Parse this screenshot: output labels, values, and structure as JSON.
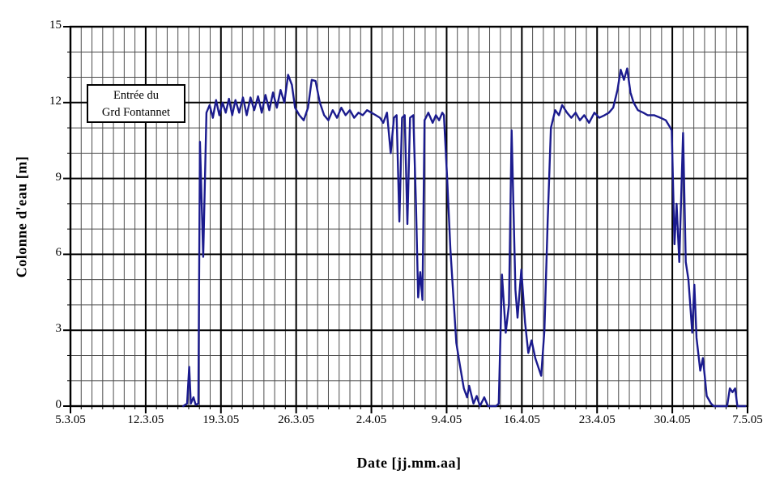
{
  "chart_data": {
    "type": "line",
    "title": "",
    "xlabel": "Date [jj.mm.aa]",
    "ylabel": "Colonne d'eau [m]",
    "x_tick_labels": [
      "5.3.05",
      "12.3.05",
      "19.3.05",
      "26.3.05",
      "2.4.05",
      "9.4.05",
      "16.4.05",
      "23.4.05",
      "30.4.05",
      "7.5.05"
    ],
    "x_tick_days": [
      0,
      7,
      14,
      21,
      28,
      35,
      42,
      49,
      56,
      63
    ],
    "x_range_days": [
      0,
      63
    ],
    "x_minor_step_days": 1,
    "ylim": [
      0,
      15
    ],
    "y_ticks": [
      0,
      3,
      6,
      9,
      12,
      15
    ],
    "y_minor_step": 1,
    "grid": "major+minor both axes",
    "legend_position": "none",
    "annotation": {
      "lines": [
        "Entrée du",
        "Grd Fontannet"
      ]
    },
    "series": [
      {
        "name": "Entrée du Grd Fontannet",
        "color": "#1b1b8e",
        "x_unit": "days since 5.3.05",
        "points": [
          [
            10.5,
            0
          ],
          [
            10.85,
            0.1
          ],
          [
            11.05,
            1.55
          ],
          [
            11.2,
            0.1
          ],
          [
            11.45,
            0.35
          ],
          [
            11.65,
            0.05
          ],
          [
            11.9,
            0.1
          ],
          [
            12.05,
            10.45
          ],
          [
            12.35,
            5.9
          ],
          [
            12.65,
            11.6
          ],
          [
            12.95,
            11.9
          ],
          [
            13.25,
            11.4
          ],
          [
            13.55,
            12.1
          ],
          [
            13.85,
            11.5
          ],
          [
            14.15,
            12.0
          ],
          [
            14.45,
            11.6
          ],
          [
            14.75,
            12.15
          ],
          [
            15.05,
            11.5
          ],
          [
            15.35,
            12.1
          ],
          [
            15.7,
            11.6
          ],
          [
            16.05,
            12.2
          ],
          [
            16.4,
            11.5
          ],
          [
            16.75,
            12.2
          ],
          [
            17.1,
            11.7
          ],
          [
            17.45,
            12.25
          ],
          [
            17.8,
            11.6
          ],
          [
            18.15,
            12.3
          ],
          [
            18.5,
            11.7
          ],
          [
            18.85,
            12.4
          ],
          [
            19.2,
            11.8
          ],
          [
            19.55,
            12.5
          ],
          [
            19.9,
            12.0
          ],
          [
            20.25,
            13.1
          ],
          [
            20.6,
            12.7
          ],
          [
            20.9,
            11.8
          ],
          [
            21.3,
            11.5
          ],
          [
            21.7,
            11.3
          ],
          [
            22.1,
            11.8
          ],
          [
            22.45,
            12.9
          ],
          [
            22.8,
            12.85
          ],
          [
            23.2,
            12.0
          ],
          [
            23.6,
            11.5
          ],
          [
            24.0,
            11.3
          ],
          [
            24.4,
            11.7
          ],
          [
            24.8,
            11.4
          ],
          [
            25.2,
            11.8
          ],
          [
            25.6,
            11.5
          ],
          [
            26.0,
            11.7
          ],
          [
            26.4,
            11.4
          ],
          [
            26.8,
            11.6
          ],
          [
            27.2,
            11.5
          ],
          [
            27.6,
            11.7
          ],
          [
            28.0,
            11.6
          ],
          [
            28.4,
            11.5
          ],
          [
            28.8,
            11.4
          ],
          [
            29.1,
            11.2
          ],
          [
            29.45,
            11.6
          ],
          [
            29.8,
            10.0
          ],
          [
            30.1,
            11.4
          ],
          [
            30.35,
            11.5
          ],
          [
            30.6,
            7.3
          ],
          [
            30.85,
            11.4
          ],
          [
            31.1,
            11.5
          ],
          [
            31.35,
            7.2
          ],
          [
            31.6,
            11.4
          ],
          [
            31.9,
            11.5
          ],
          [
            32.15,
            8.0
          ],
          [
            32.35,
            4.3
          ],
          [
            32.55,
            5.3
          ],
          [
            32.75,
            4.2
          ],
          [
            32.95,
            11.3
          ],
          [
            33.3,
            11.6
          ],
          [
            33.7,
            11.2
          ],
          [
            34.0,
            11.5
          ],
          [
            34.3,
            11.3
          ],
          [
            34.6,
            11.6
          ],
          [
            34.75,
            11.5
          ],
          [
            35.05,
            9.0
          ],
          [
            35.35,
            6.2
          ],
          [
            35.9,
            2.5
          ],
          [
            36.2,
            1.7
          ],
          [
            36.6,
            0.7
          ],
          [
            36.9,
            0.35
          ],
          [
            37.1,
            0.8
          ],
          [
            37.5,
            0.1
          ],
          [
            37.8,
            0.4
          ],
          [
            38.1,
            0.0
          ],
          [
            38.5,
            0.35
          ],
          [
            38.85,
            0.0
          ],
          [
            39.6,
            0.0
          ],
          [
            39.85,
            0.1
          ],
          [
            40.15,
            5.2
          ],
          [
            40.5,
            2.9
          ],
          [
            40.8,
            4.0
          ],
          [
            41.05,
            10.9
          ],
          [
            41.4,
            4.6
          ],
          [
            41.6,
            3.5
          ],
          [
            41.95,
            5.4
          ],
          [
            42.3,
            3.3
          ],
          [
            42.6,
            2.1
          ],
          [
            42.9,
            2.6
          ],
          [
            43.25,
            1.9
          ],
          [
            43.8,
            1.2
          ],
          [
            44.1,
            3.0
          ],
          [
            44.4,
            7.3
          ],
          [
            44.7,
            11.0
          ],
          [
            45.1,
            11.7
          ],
          [
            45.45,
            11.5
          ],
          [
            45.75,
            11.9
          ],
          [
            46.2,
            11.6
          ],
          [
            46.6,
            11.4
          ],
          [
            47.0,
            11.6
          ],
          [
            47.4,
            11.3
          ],
          [
            47.8,
            11.5
          ],
          [
            48.25,
            11.2
          ],
          [
            48.75,
            11.6
          ],
          [
            49.2,
            11.4
          ],
          [
            49.7,
            11.5
          ],
          [
            50.1,
            11.6
          ],
          [
            50.5,
            11.8
          ],
          [
            50.9,
            12.5
          ],
          [
            51.2,
            13.3
          ],
          [
            51.5,
            12.9
          ],
          [
            51.8,
            13.35
          ],
          [
            52.1,
            12.4
          ],
          [
            52.4,
            12.0
          ],
          [
            52.8,
            11.7
          ],
          [
            53.3,
            11.6
          ],
          [
            53.7,
            11.5
          ],
          [
            54.3,
            11.5
          ],
          [
            54.9,
            11.4
          ],
          [
            55.4,
            11.3
          ],
          [
            55.75,
            11.05
          ],
          [
            55.95,
            10.9
          ],
          [
            56.2,
            6.4
          ],
          [
            56.4,
            8.0
          ],
          [
            56.65,
            5.7
          ],
          [
            57.0,
            10.8
          ],
          [
            57.25,
            5.7
          ],
          [
            57.5,
            5.0
          ],
          [
            57.85,
            2.9
          ],
          [
            58.05,
            4.8
          ],
          [
            58.25,
            2.7
          ],
          [
            58.6,
            1.4
          ],
          [
            58.85,
            1.9
          ],
          [
            59.2,
            0.4
          ],
          [
            59.6,
            0.1
          ],
          [
            59.85,
            0.0
          ],
          [
            61.1,
            0.0
          ],
          [
            61.35,
            0.7
          ],
          [
            61.6,
            0.55
          ],
          [
            61.85,
            0.7
          ],
          [
            62.05,
            0.0
          ],
          [
            62.8,
            0.0
          ]
        ]
      }
    ]
  },
  "colors": {
    "line": "#1b1b8e",
    "grid_minor": "#4d4d4d",
    "grid_major": "#000000",
    "frame": "#000000",
    "background": "#ffffff",
    "text": "#000000"
  }
}
